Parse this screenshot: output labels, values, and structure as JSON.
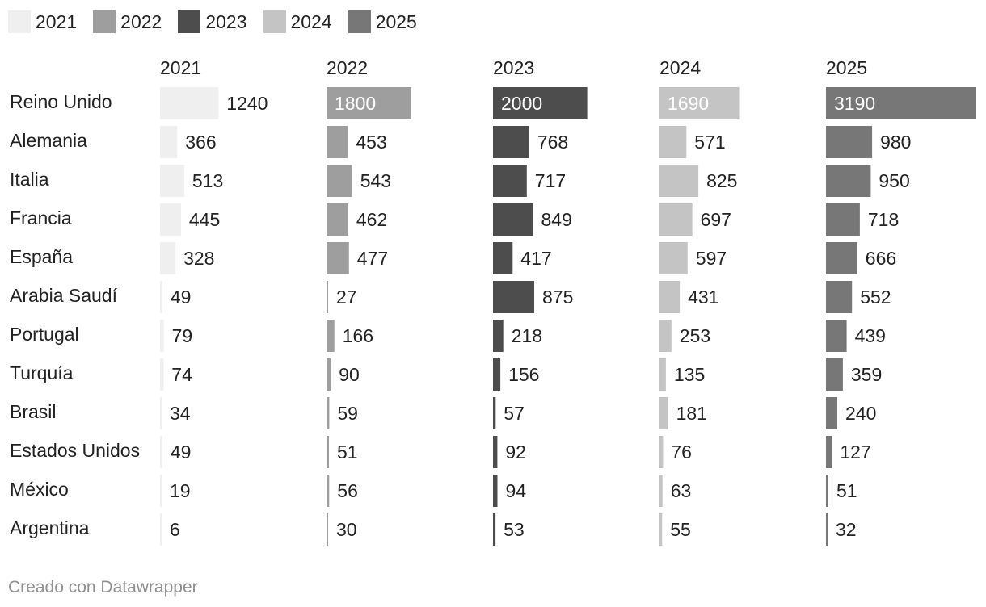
{
  "chart_data": {
    "type": "bar",
    "title": "",
    "xlabel": "",
    "ylabel": "",
    "categories": [
      "Reino Unido",
      "Alemania",
      "Italia",
      "Francia",
      "España",
      "Arabia Saudí",
      "Portugal",
      "Turquía",
      "Brasil",
      "Estados Unidos",
      "México",
      "Argentina"
    ],
    "series": [
      {
        "name": "2021",
        "color": "#efefef",
        "values": [
          1240,
          366,
          513,
          445,
          328,
          49,
          79,
          74,
          34,
          49,
          19,
          6
        ]
      },
      {
        "name": "2022",
        "color": "#9e9e9e",
        "values": [
          1800,
          453,
          543,
          462,
          477,
          27,
          166,
          90,
          59,
          51,
          56,
          30
        ]
      },
      {
        "name": "2023",
        "color": "#4d4d4d",
        "values": [
          2000,
          768,
          717,
          849,
          417,
          875,
          218,
          156,
          57,
          92,
          94,
          53
        ]
      },
      {
        "name": "2024",
        "color": "#c4c4c4",
        "values": [
          1690,
          571,
          825,
          697,
          597,
          431,
          253,
          135,
          181,
          76,
          63,
          55
        ]
      },
      {
        "name": "2025",
        "color": "#777777",
        "values": [
          3190,
          980,
          950,
          718,
          666,
          552,
          439,
          359,
          240,
          127,
          51,
          32
        ]
      }
    ],
    "xlim": [
      0,
      3190
    ],
    "legend": "top-left",
    "grid": false
  },
  "footer": {
    "credit": "Creado con Datawrapper"
  }
}
